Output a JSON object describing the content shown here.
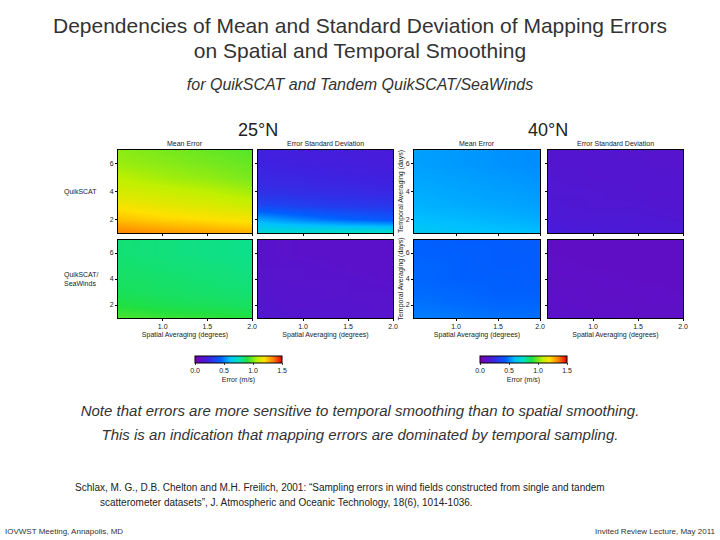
{
  "title": [
    "Dependencies of Mean and Standard Deviation of Mapping Errors",
    "on Spatial and Temporal Smoothing"
  ],
  "subtitle": "for QuikSCAT and Tandem QuikSCAT/SeaWinds",
  "notes": [
    "Note that errors are more sensitive to temporal smoothing than to spatial smoothing.",
    "This is an indication that mapping errors are dominated by temporal sampling."
  ],
  "citation": [
    "Schlax, M. G., D.B. Chelton and M.H. Freilich, 2001: “Sampling errors in wind fields constructed from single and tandem",
    "scatterometer datasets”, J. Atmospheric and Oceanic Technology, 18(6), 1014-1036."
  ],
  "footer": {
    "left": "IOVWST Meeting, Annapolis, MD",
    "right": "Invited Review Lecture, May 2011"
  },
  "chart_data": [
    {
      "type": "heatmap",
      "title": "25°N",
      "row_labels": [
        "QuikSCAT",
        "QuikSCAT/\nSeaWinds"
      ],
      "colorbar": {
        "title": "Error (m/s)",
        "range": [
          0,
          1.5
        ],
        "ticks": [
          {
            "value": 0,
            "label": "0.0"
          },
          {
            "value": 0.5,
            "label": "0.5"
          },
          {
            "value": 1,
            "label": "1.0"
          },
          {
            "value": 1.5,
            "label": "1.5"
          }
        ]
      },
      "panels": [
        {
          "title": "Mean Error",
          "tick_labels": "y",
          "x": [
            0.5,
            1,
            1.5,
            2
          ],
          "y": [
            1,
            2,
            3,
            4,
            5,
            6,
            7
          ],
          "xlim": [
            0.5,
            2
          ],
          "ylim": [
            1,
            7
          ],
          "xticks": [
            {
              "value": 1,
              "label": "1.0"
            },
            {
              "value": 1.5,
              "label": "1.5"
            },
            {
              "value": 2,
              "label": "2.0"
            }
          ],
          "yticks": [
            2,
            4,
            6
          ],
          "z": [
            [
              1.35,
              1.32,
              1.3,
              1.28
            ],
            [
              1.25,
              1.22,
              1.2,
              1.18
            ],
            [
              1.18,
              1.15,
              1.13,
              1.1
            ],
            [
              1.12,
              1.1,
              1.08,
              1.05
            ],
            [
              1.08,
              1.05,
              1.03,
              1.0
            ],
            [
              1.04,
              1.02,
              1.0,
              0.98
            ],
            [
              1.02,
              1.0,
              0.98,
              0.96
            ]
          ]
        },
        {
          "title": "Error Standard Deviation",
          "tick_labels": false,
          "x": [
            0.5,
            1,
            1.5,
            2
          ],
          "y": [
            1,
            2,
            3,
            4,
            5,
            6,
            7
          ],
          "xlim": [
            0.5,
            2
          ],
          "ylim": [
            1,
            7
          ],
          "xticks": [
            {
              "value": 1,
              "label": "1.0"
            },
            {
              "value": 1.5,
              "label": "1.5"
            },
            {
              "value": 2,
              "label": "2.0"
            }
          ],
          "yticks": [
            2,
            4,
            6
          ],
          "z": [
            [
              0.72,
              0.74,
              0.76,
              0.76
            ],
            [
              0.56,
              0.5,
              0.45,
              0.42
            ],
            [
              0.36,
              0.33,
              0.31,
              0.3
            ],
            [
              0.28,
              0.27,
              0.26,
              0.25
            ],
            [
              0.25,
              0.24,
              0.23,
              0.22
            ],
            [
              0.23,
              0.22,
              0.21,
              0.2
            ],
            [
              0.22,
              0.21,
              0.2,
              0.19
            ]
          ]
        },
        {
          "xlabel": "Spatial Averaging (degrees)",
          "x": [
            0.5,
            1,
            1.5,
            2
          ],
          "y": [
            1,
            2,
            3,
            4,
            5,
            6,
            7
          ],
          "xlim": [
            0.5,
            2
          ],
          "ylim": [
            1,
            7
          ],
          "xticks": [
            {
              "value": 1,
              "label": "1.0"
            },
            {
              "value": 1.5,
              "label": "1.5"
            },
            {
              "value": 2,
              "label": "2.0"
            }
          ],
          "yticks": [
            2,
            4,
            6
          ],
          "z": [
            [
              0.95,
              0.93,
              0.92,
              0.9
            ],
            [
              0.9,
              0.88,
              0.87,
              0.86
            ],
            [
              0.87,
              0.86,
              0.85,
              0.84
            ],
            [
              0.86,
              0.85,
              0.84,
              0.83
            ],
            [
              0.85,
              0.84,
              0.83,
              0.82
            ],
            [
              0.84,
              0.83,
              0.82,
              0.81
            ],
            [
              0.84,
              0.83,
              0.82,
              0.81
            ]
          ]
        },
        {
          "xlabel": "Spatial Averaging (degrees)",
          "tick_labels": "x",
          "x": [
            0.5,
            1,
            1.5,
            2
          ],
          "y": [
            1,
            2,
            3,
            4,
            5,
            6,
            7
          ],
          "xlim": [
            0.5,
            2
          ],
          "ylim": [
            1,
            7
          ],
          "xticks": [
            {
              "value": 1,
              "label": "1.0"
            },
            {
              "value": 1.5,
              "label": "1.5"
            },
            {
              "value": 2,
              "label": "2.0"
            }
          ],
          "yticks": [
            2,
            4,
            6
          ],
          "z": [
            [
              0.16,
              0.15,
              0.14,
              0.14
            ],
            [
              0.15,
              0.14,
              0.14,
              0.13
            ],
            [
              0.14,
              0.14,
              0.13,
              0.13
            ],
            [
              0.14,
              0.13,
              0.13,
              0.12
            ],
            [
              0.13,
              0.13,
              0.12,
              0.12
            ],
            [
              0.13,
              0.12,
              0.12,
              0.12
            ],
            [
              0.13,
              0.12,
              0.12,
              0.12
            ]
          ]
        }
      ]
    },
    {
      "type": "heatmap",
      "title": "40°N",
      "colorbar": {
        "title": "Error (m/s)",
        "range": [
          0,
          1.5
        ],
        "ticks": [
          {
            "value": 0,
            "label": "0.0"
          },
          {
            "value": 0.5,
            "label": "0.5"
          },
          {
            "value": 1,
            "label": "1.0"
          },
          {
            "value": 1.5,
            "label": "1.5"
          }
        ]
      },
      "panels": [
        {
          "title": "Mean Error",
          "ylabel": "Temporal Averaging (days)",
          "tick_labels": "y",
          "x": [
            0.5,
            1,
            1.5,
            2
          ],
          "y": [
            1,
            2,
            3,
            4,
            5,
            6,
            7
          ],
          "xlim": [
            0.5,
            2
          ],
          "ylim": [
            1,
            7
          ],
          "xticks": [
            {
              "value": 1,
              "label": "1.0"
            },
            {
              "value": 1.5,
              "label": "1.5"
            },
            {
              "value": 2,
              "label": "2.0"
            }
          ],
          "yticks": [
            2,
            4,
            6
          ],
          "z": [
            [
              0.64,
              0.62,
              0.61,
              0.6
            ],
            [
              0.6,
              0.59,
              0.58,
              0.57
            ],
            [
              0.58,
              0.57,
              0.56,
              0.55
            ],
            [
              0.57,
              0.56,
              0.55,
              0.54
            ],
            [
              0.56,
              0.55,
              0.54,
              0.53
            ],
            [
              0.55,
              0.54,
              0.53,
              0.52
            ],
            [
              0.55,
              0.54,
              0.53,
              0.52
            ]
          ]
        },
        {
          "title": "Error Standard Deviation",
          "tick_labels": false,
          "x": [
            0.5,
            1,
            1.5,
            2
          ],
          "y": [
            1,
            2,
            3,
            4,
            5,
            6,
            7
          ],
          "xlim": [
            0.5,
            2
          ],
          "ylim": [
            1,
            7
          ],
          "xticks": [
            {
              "value": 1,
              "label": "1.0"
            },
            {
              "value": 1.5,
              "label": "1.5"
            },
            {
              "value": 2,
              "label": "2.0"
            }
          ],
          "yticks": [
            2,
            4,
            6
          ],
          "z": [
            [
              0.2,
              0.19,
              0.18,
              0.18
            ],
            [
              0.18,
              0.17,
              0.17,
              0.16
            ],
            [
              0.17,
              0.16,
              0.16,
              0.15
            ],
            [
              0.16,
              0.16,
              0.15,
              0.15
            ],
            [
              0.16,
              0.15,
              0.15,
              0.15
            ],
            [
              0.15,
              0.15,
              0.15,
              0.14
            ],
            [
              0.15,
              0.15,
              0.14,
              0.14
            ]
          ]
        },
        {
          "xlabel": "Spatial Averaging (degrees)",
          "ylabel": "Temporal Averaging (days)",
          "x": [
            0.5,
            1,
            1.5,
            2
          ],
          "y": [
            1,
            2,
            3,
            4,
            5,
            6,
            7
          ],
          "xlim": [
            0.5,
            2
          ],
          "ylim": [
            1,
            7
          ],
          "xticks": [
            {
              "value": 1,
              "label": "1.0"
            },
            {
              "value": 1.5,
              "label": "1.5"
            },
            {
              "value": 2,
              "label": "2.0"
            }
          ],
          "yticks": [
            2,
            4,
            6
          ],
          "z": [
            [
              0.5,
              0.49,
              0.48,
              0.47
            ],
            [
              0.48,
              0.47,
              0.46,
              0.46
            ],
            [
              0.47,
              0.46,
              0.45,
              0.45
            ],
            [
              0.46,
              0.45,
              0.45,
              0.44
            ],
            [
              0.46,
              0.45,
              0.44,
              0.44
            ],
            [
              0.45,
              0.45,
              0.44,
              0.44
            ],
            [
              0.45,
              0.44,
              0.44,
              0.43
            ]
          ]
        },
        {
          "xlabel": "Spatial Averaging (degrees)",
          "tick_labels": "x",
          "x": [
            0.5,
            1,
            1.5,
            2
          ],
          "y": [
            1,
            2,
            3,
            4,
            5,
            6,
            7
          ],
          "xlim": [
            0.5,
            2
          ],
          "ylim": [
            1,
            7
          ],
          "xticks": [
            {
              "value": 1,
              "label": "1.0"
            },
            {
              "value": 1.5,
              "label": "1.5"
            },
            {
              "value": 2,
              "label": "2.0"
            }
          ],
          "yticks": [
            2,
            4,
            6
          ],
          "z": [
            [
              0.12,
              0.12,
              0.11,
              0.11
            ],
            [
              0.12,
              0.11,
              0.11,
              0.11
            ],
            [
              0.11,
              0.11,
              0.11,
              0.1
            ],
            [
              0.11,
              0.11,
              0.1,
              0.1
            ],
            [
              0.11,
              0.1,
              0.1,
              0.1
            ],
            [
              0.1,
              0.1,
              0.1,
              0.1
            ],
            [
              0.1,
              0.1,
              0.1,
              0.1
            ]
          ]
        }
      ]
    }
  ]
}
